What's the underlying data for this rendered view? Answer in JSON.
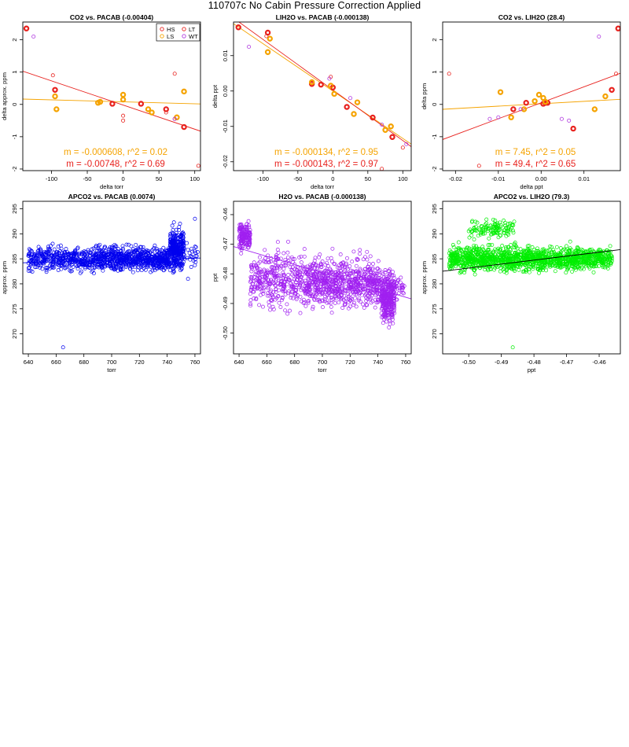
{
  "page": {
    "title": "110707c   No Cabin Pressure Correction Applied"
  },
  "colors": {
    "HS": "#e8221e",
    "LS": "#f5a300",
    "LT": "#e8221e",
    "WT": "#b03ae0",
    "blue": "#0000ee",
    "purple": "#a020f0",
    "green": "#00ee00"
  },
  "chart_data": [
    {
      "type": "scatter",
      "title": "CO2 vs. PACAB (-0.00404)",
      "xlabel": "delta torr",
      "ylabel": "delta approx. ppm",
      "xlim": [
        -140,
        108
      ],
      "ylim": [
        -2.05,
        2.55
      ],
      "xticks": [
        -100,
        -50,
        0,
        50,
        100
      ],
      "yticks": [
        -2,
        -1,
        0,
        1,
        2
      ],
      "legend": {
        "placement": "top-right",
        "entries": [
          {
            "name": "HS",
            "color": "#e8221e"
          },
          {
            "name": "LT",
            "color": "#e8221e"
          },
          {
            "name": "LS",
            "color": "#f5a300"
          },
          {
            "name": "WT",
            "color": "#b03ae0"
          }
        ]
      },
      "series": [
        {
          "name": "HS",
          "color": "#e8221e",
          "marker": "bold",
          "points": [
            [
              -135,
              2.35
            ],
            [
              -95,
              0.45
            ],
            [
              -15,
              0.02
            ],
            [
              25,
              0.02
            ],
            [
              60,
              -0.15
            ],
            [
              85,
              -0.7
            ]
          ]
        },
        {
          "name": "LS",
          "color": "#f5a300",
          "marker": "bold",
          "points": [
            [
              -95,
              0.25
            ],
            [
              -93,
              -0.15
            ],
            [
              -35,
              0.05
            ],
            [
              -32,
              0.08
            ],
            [
              0,
              0.3
            ],
            [
              0,
              0.15
            ],
            [
              35,
              -0.15
            ],
            [
              40,
              -0.25
            ],
            [
              75,
              -0.4
            ],
            [
              85,
              0.4
            ]
          ]
        },
        {
          "name": "LT",
          "color": "#e8221e",
          "marker": "thin",
          "points": [
            [
              -98,
              0.9
            ],
            [
              0,
              -0.35
            ],
            [
              0,
              -0.5
            ],
            [
              60,
              -0.25
            ],
            [
              72,
              -0.45
            ],
            [
              72,
              0.95
            ],
            [
              105,
              -1.9
            ]
          ]
        },
        {
          "name": "WT",
          "color": "#b03ae0",
          "marker": "thin",
          "points": [
            [
              -125,
              2.1
            ],
            [
              72,
              -0.45
            ]
          ]
        }
      ],
      "fits": [
        {
          "color": "#f5a300",
          "slope": -0.000608,
          "intercept": 0.08
        },
        {
          "color": "#e8221e",
          "slope": -0.00748,
          "intercept": -0.02
        }
      ],
      "annotations": [
        {
          "text": "m = -0.000608, r^2 = 0.02",
          "color": "#f5a300"
        },
        {
          "text": "m = -0.00748, r^2 = 0.69",
          "color": "#e8221e"
        }
      ]
    },
    {
      "type": "scatter",
      "title": "LIH2O vs. PACAB (-0.000138)",
      "xlabel": "delta torr",
      "ylabel": "delta ppt",
      "xlim": [
        -142,
        112
      ],
      "ylim": [
        -0.0225,
        0.0195
      ],
      "xticks": [
        -100,
        -50,
        0,
        50,
        100
      ],
      "yticks": [
        -0.02,
        -0.01,
        0.0,
        0.01
      ],
      "series": [
        {
          "name": "HS",
          "color": "#e8221e",
          "marker": "bold",
          "points": [
            [
              -135,
              0.018
            ],
            [
              -93,
              0.0165
            ],
            [
              -30,
              0.002
            ],
            [
              -17,
              0.0018
            ],
            [
              0,
              0.001
            ],
            [
              20,
              -0.0045
            ],
            [
              57,
              -0.0075
            ],
            [
              85,
              -0.013
            ]
          ]
        },
        {
          "name": "LS",
          "color": "#f5a300",
          "marker": "bold",
          "points": [
            [
              -93,
              0.011
            ],
            [
              -90,
              0.0148
            ],
            [
              -30,
              0.0025
            ],
            [
              -3,
              0.0015
            ],
            [
              2,
              -0.0008
            ],
            [
              35,
              -0.0032
            ],
            [
              30,
              -0.0065
            ],
            [
              75,
              -0.011
            ],
            [
              83,
              -0.01
            ]
          ]
        },
        {
          "name": "LT",
          "color": "#e8221e",
          "marker": "thin",
          "points": [
            [
              -95,
              0.0155
            ],
            [
              -3,
              0.004
            ],
            [
              0,
              0.001
            ],
            [
              70,
              -0.022
            ],
            [
              100,
              -0.016
            ]
          ]
        },
        {
          "name": "WT",
          "color": "#b03ae0",
          "marker": "thin",
          "points": [
            [
              -120,
              0.0125
            ],
            [
              -5,
              0.0035
            ],
            [
              25,
              -0.002
            ],
            [
              70,
              -0.0095
            ],
            [
              105,
              -0.015
            ]
          ]
        }
      ],
      "fits": [
        {
          "color": "#f5a300",
          "slope": -0.000134,
          "intercept": 0.0
        },
        {
          "color": "#e8221e",
          "slope": -0.000143,
          "intercept": 0.0003
        }
      ],
      "annotations": [
        {
          "text": "m = -0.000134, r^2 = 0.95",
          "color": "#f5a300"
        },
        {
          "text": "m = -0.000143, r^2 = 0.97",
          "color": "#e8221e"
        }
      ]
    },
    {
      "type": "scatter",
      "title": "CO2 vs. LIH2O (28.4)",
      "xlabel": "delta ppt",
      "ylabel": "delta ppm",
      "xlim": [
        -0.023,
        0.0185
      ],
      "ylim": [
        -2.05,
        2.55
      ],
      "xticks": [
        -0.02,
        -0.01,
        0.0,
        0.01
      ],
      "yticks": [
        -2,
        -1,
        0,
        1,
        2
      ],
      "series": [
        {
          "name": "HS",
          "color": "#e8221e",
          "marker": "bold",
          "points": [
            [
              -0.0065,
              -0.15
            ],
            [
              -0.0035,
              0.05
            ],
            [
              0.0005,
              0.02
            ],
            [
              0.001,
              0.05
            ],
            [
              0.0015,
              0.05
            ],
            [
              0.0075,
              -0.75
            ],
            [
              0.0165,
              0.45
            ],
            [
              0.018,
              2.35
            ]
          ]
        },
        {
          "name": "LS",
          "color": "#f5a300",
          "marker": "bold",
          "points": [
            [
              -0.0095,
              0.38
            ],
            [
              -0.007,
              -0.4
            ],
            [
              -0.004,
              -0.15
            ],
            [
              -0.0015,
              0.1
            ],
            [
              -0.0005,
              0.3
            ],
            [
              0.0005,
              0.2
            ],
            [
              0.001,
              0.08
            ],
            [
              0.0125,
              -0.15
            ],
            [
              0.015,
              0.25
            ]
          ]
        },
        {
          "name": "LT",
          "color": "#e8221e",
          "marker": "thin",
          "points": [
            [
              -0.0215,
              0.95
            ],
            [
              -0.0145,
              -1.9
            ],
            [
              0.0175,
              0.95
            ]
          ]
        },
        {
          "name": "WT",
          "color": "#b03ae0",
          "marker": "thin",
          "points": [
            [
              -0.012,
              -0.45
            ],
            [
              -0.01,
              -0.4
            ],
            [
              -0.0048,
              -0.15
            ],
            [
              0.0048,
              -0.45
            ],
            [
              0.0065,
              -0.5
            ],
            [
              0.0135,
              2.1
            ]
          ]
        }
      ],
      "fits": [
        {
          "color": "#f5a300",
          "slope": 7.45,
          "intercept": 0.02
        },
        {
          "color": "#e8221e",
          "slope": 49.4,
          "intercept": 0.05
        }
      ],
      "annotations": [
        {
          "text": "m = 7.45, r^2 = 0.05",
          "color": "#f5a300"
        },
        {
          "text": "m = 49.4, r^2 = 0.65",
          "color": "#e8221e"
        }
      ]
    },
    {
      "type": "scatter",
      "title": "APCO2 vs. PACAB (0.0074)",
      "xlabel": "torr",
      "ylabel": "approx. ppm",
      "xlim": [
        636,
        764
      ],
      "ylim": [
        266,
        296.5
      ],
      "xticks": [
        640,
        660,
        680,
        700,
        720,
        740,
        760
      ],
      "yticks": [
        270,
        275,
        280,
        285,
        290,
        295
      ],
      "color": "#0000ee",
      "dense_regions": [
        {
          "x": [
            640,
            690
          ],
          "y": [
            280,
            290
          ],
          "count": 420
        },
        {
          "x": [
            690,
            742
          ],
          "y": [
            280,
            290
          ],
          "count": 650
        },
        {
          "x": [
            742,
            752
          ],
          "y": [
            279,
            295
          ],
          "count": 320
        },
        {
          "x": [
            752,
            762
          ],
          "y": [
            280,
            292
          ],
          "count": 25
        }
      ],
      "outliers": [
        [
          665,
          267.3
        ],
        [
          760,
          293
        ],
        [
          755,
          281
        ]
      ],
      "fits": [
        {
          "color": "#0000ee",
          "slope": 0.0074,
          "intercept": 279.5
        }
      ]
    },
    {
      "type": "scatter",
      "title": "H2O vs. PACAB (-0.000138)",
      "xlabel": "torr",
      "ylabel": "ppt",
      "xlim": [
        636,
        764
      ],
      "ylim": [
        -0.507,
        -0.4555
      ],
      "xticks": [
        640,
        660,
        680,
        700,
        720,
        740,
        760
      ],
      "yticks": [
        -0.5,
        -0.49,
        -0.48,
        -0.47,
        -0.46
      ],
      "color": "#a020f0",
      "dense_regions": [
        {
          "x": [
            640,
            648
          ],
          "y": [
            -0.477,
            -0.458
          ],
          "count": 160
        },
        {
          "x": [
            648,
            688
          ],
          "y": [
            -0.502,
            -0.462
          ],
          "count": 360
        },
        {
          "x": [
            688,
            742
          ],
          "y": [
            -0.5,
            -0.466
          ],
          "count": 700
        },
        {
          "x": [
            742,
            752
          ],
          "y": [
            -0.505,
            -0.47
          ],
          "count": 320
        },
        {
          "x": [
            752,
            760
          ],
          "y": [
            -0.495,
            -0.475
          ],
          "count": 30
        }
      ],
      "outliers": [],
      "fits": [
        {
          "color": "#a020f0",
          "slope": -0.000138,
          "intercept": -0.383
        }
      ]
    },
    {
      "type": "scatter",
      "title": "APCO2 vs. LIH2O (79.3)",
      "xlabel": "ppt",
      "ylabel": "approx. ppm",
      "xlim": [
        -0.508,
        -0.4535
      ],
      "ylim": [
        266,
        296.5
      ],
      "xticks": [
        -0.5,
        -0.49,
        -0.48,
        -0.47,
        -0.46
      ],
      "yticks": [
        270,
        275,
        280,
        285,
        290,
        295
      ],
      "color": "#00ee00",
      "dense_regions": [
        {
          "x": [
            -0.506,
            -0.456
          ],
          "y": [
            280,
            290
          ],
          "count": 1400
        },
        {
          "x": [
            -0.5,
            -0.486
          ],
          "y": [
            287,
            295
          ],
          "count": 120
        }
      ],
      "outliers": [
        [
          -0.4865,
          267.3
        ]
      ],
      "fits": [
        {
          "color": "#000000",
          "slope": 79.3,
          "intercept": 322.8
        }
      ]
    }
  ]
}
